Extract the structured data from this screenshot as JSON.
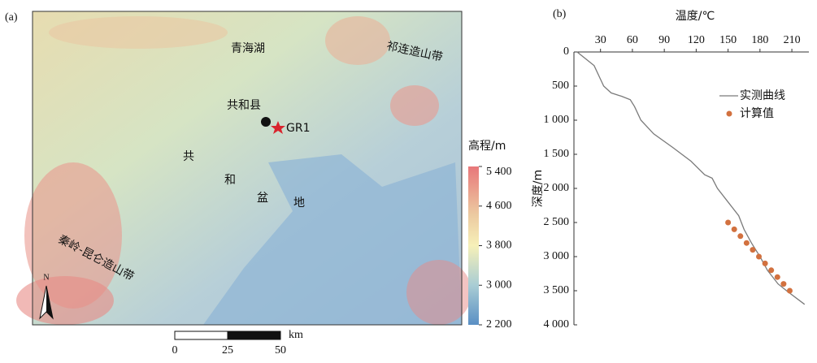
{
  "panels": {
    "a": "(a)",
    "b": "(b)"
  },
  "map": {
    "labels": {
      "lake": "青海湖",
      "qilian": "祁连造山带",
      "county": "共和县",
      "well": "GR1",
      "basin": [
        "共",
        "和",
        "盆",
        "地"
      ],
      "qinling": "秦岭-昆仑造山带",
      "north": "N"
    },
    "legend": {
      "title": "高程/m",
      "lim": [
        2200,
        5400
      ],
      "ticks": [
        {
          "value": 5400,
          "label": "5 400"
        },
        {
          "value": 4600,
          "label": "4 600"
        },
        {
          "value": 3800,
          "label": "3 800"
        },
        {
          "value": 3000,
          "label": "3 000"
        },
        {
          "value": 2200,
          "label": "2 200"
        }
      ]
    },
    "scale_bar": {
      "ticks": [
        0,
        25,
        50
      ],
      "unit": "km"
    }
  },
  "chart_data": {
    "type": "line",
    "x_label": "温度/℃",
    "y_label": "深度/m",
    "xlim": [
      5,
      226
    ],
    "xticks": [
      30,
      60,
      90,
      120,
      150,
      180,
      210
    ],
    "ylim": [
      0,
      4000
    ],
    "y_reversed": true,
    "yticks": [
      0,
      500,
      {
        "value": 1000,
        "label": "1 000"
      },
      {
        "value": 1500,
        "label": "1 500"
      },
      {
        "value": 2000,
        "label": "2 000"
      },
      {
        "value": 2500,
        "label": "2 500"
      },
      {
        "value": 3000,
        "label": "3 000"
      },
      {
        "value": 3500,
        "label": "3 500"
      },
      {
        "value": 4000,
        "label": "4 000"
      }
    ],
    "series": [
      {
        "name": "实测曲线",
        "type": "line",
        "color": "#7a7a7a",
        "x": [
          8,
          16,
          24,
          30,
          33,
          40,
          50,
          58,
          62,
          68,
          80,
          98,
          115,
          128,
          135,
          140,
          150,
          160,
          165,
          172,
          180,
          187,
          197,
          205,
          222
        ],
        "values": [
          0,
          100,
          200,
          400,
          500,
          600,
          650,
          700,
          800,
          1000,
          1200,
          1400,
          1600,
          1800,
          1850,
          2000,
          2200,
          2400,
          2600,
          2800,
          3000,
          3200,
          3400,
          3500,
          3700
        ]
      },
      {
        "name": "计算值",
        "type": "scatter",
        "color": "#d2713f",
        "x": [
          150,
          155.8,
          161.6,
          167.4,
          173.2,
          179,
          184.8,
          190.6,
          196.4,
          202.2,
          208
        ],
        "values": [
          2500,
          2600,
          2700,
          2800,
          2900,
          3000,
          3100,
          3200,
          3300,
          3400,
          3500
        ]
      }
    ]
  }
}
